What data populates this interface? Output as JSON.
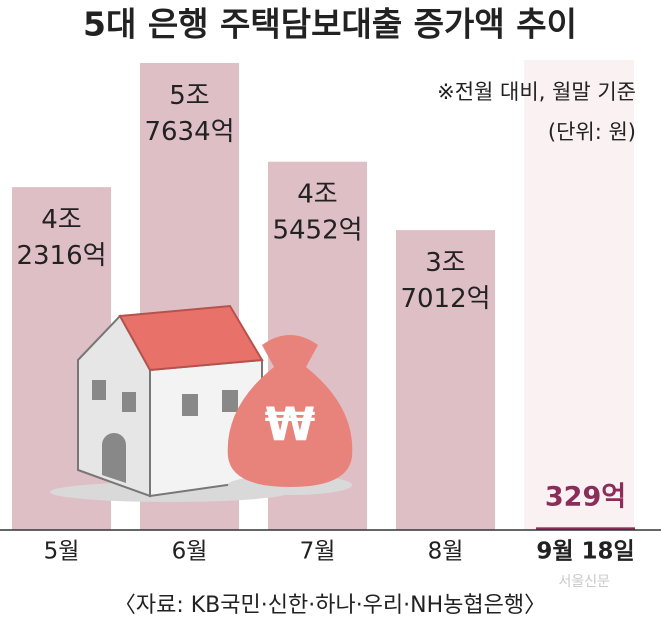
{
  "chart_data": {
    "type": "bar",
    "title": "5대 은행 주택담보대출 증가액 추이",
    "subtitle": "※전월 대비, 월말 기준",
    "unit_note": "(단위: 원)",
    "categories": [
      "5월",
      "6월",
      "7월",
      "8월",
      "9월 18일"
    ],
    "values": [
      42316,
      57634,
      45452,
      37012,
      329
    ],
    "value_labels": [
      "4조 2316억",
      "5조 7634억",
      "4조 5452억",
      "3조 7012억",
      "329억"
    ],
    "colors": [
      "#dfbfc6",
      "#dfbfc6",
      "#dfbfc6",
      "#dfbfc6",
      "#8a2d59"
    ],
    "source": "〈자료: KB국민·신한·하나·우리·NH농협은행〉",
    "watermark": "서울신문"
  }
}
